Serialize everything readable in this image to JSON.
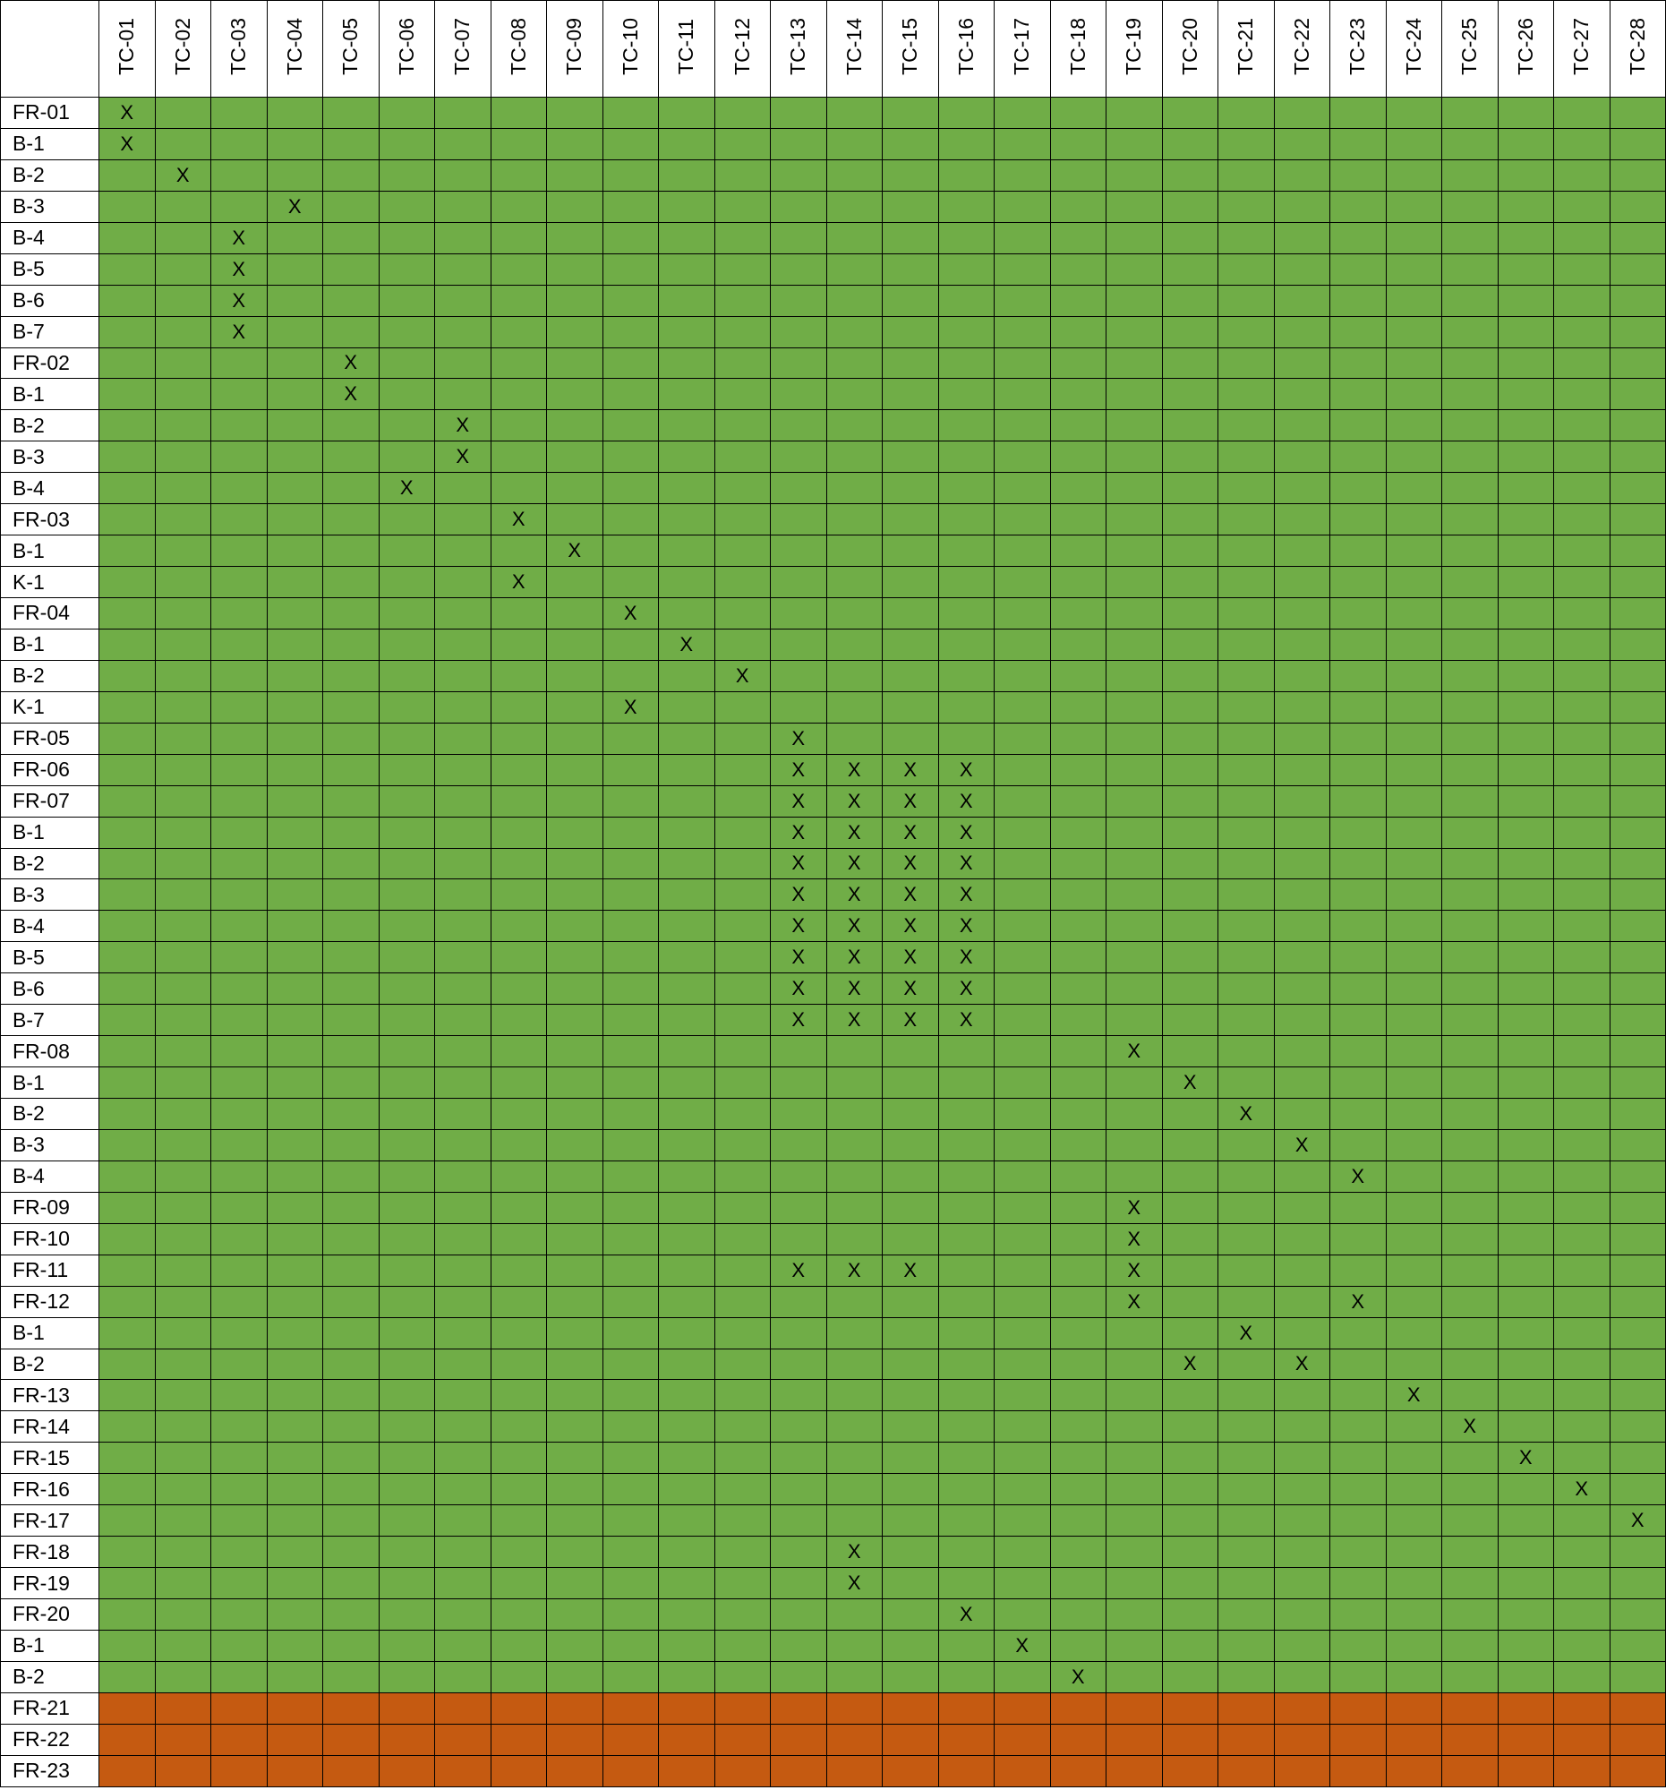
{
  "matrix": {
    "columns": [
      "TC-01",
      "TC-02",
      "TC-03",
      "TC-04",
      "TC-05",
      "TC-06",
      "TC-07",
      "TC-08",
      "TC-09",
      "TC-10",
      "TC-11",
      "TC-12",
      "TC-13",
      "TC-14",
      "TC-15",
      "TC-16",
      "TC-17",
      "TC-18",
      "TC-19",
      "TC-20",
      "TC-21",
      "TC-22",
      "TC-23",
      "TC-24",
      "TC-25",
      "TC-26",
      "TC-27",
      "TC-28"
    ],
    "mark": "X",
    "status_colors": {
      "covered": "#70ad47",
      "uncovered": "#c55a11"
    },
    "rows": [
      {
        "label": "FR-01",
        "status": "covered",
        "marks": [
          "TC-01"
        ]
      },
      {
        "label": "B-1",
        "status": "covered",
        "marks": [
          "TC-01"
        ]
      },
      {
        "label": "B-2",
        "status": "covered",
        "marks": [
          "TC-02"
        ]
      },
      {
        "label": "B-3",
        "status": "covered",
        "marks": [
          "TC-04"
        ]
      },
      {
        "label": "B-4",
        "status": "covered",
        "marks": [
          "TC-03"
        ]
      },
      {
        "label": "B-5",
        "status": "covered",
        "marks": [
          "TC-03"
        ]
      },
      {
        "label": "B-6",
        "status": "covered",
        "marks": [
          "TC-03"
        ]
      },
      {
        "label": "B-7",
        "status": "covered",
        "marks": [
          "TC-03"
        ]
      },
      {
        "label": "FR-02",
        "status": "covered",
        "marks": [
          "TC-05"
        ]
      },
      {
        "label": "B-1",
        "status": "covered",
        "marks": [
          "TC-05"
        ]
      },
      {
        "label": "B-2",
        "status": "covered",
        "marks": [
          "TC-07"
        ]
      },
      {
        "label": "B-3",
        "status": "covered",
        "marks": [
          "TC-07"
        ]
      },
      {
        "label": "B-4",
        "status": "covered",
        "marks": [
          "TC-06"
        ]
      },
      {
        "label": "FR-03",
        "status": "covered",
        "marks": [
          "TC-08"
        ]
      },
      {
        "label": "B-1",
        "status": "covered",
        "marks": [
          "TC-09"
        ]
      },
      {
        "label": "K-1",
        "status": "covered",
        "marks": [
          "TC-08"
        ]
      },
      {
        "label": "FR-04",
        "status": "covered",
        "marks": [
          "TC-10"
        ]
      },
      {
        "label": "B-1",
        "status": "covered",
        "marks": [
          "TC-11"
        ]
      },
      {
        "label": "B-2",
        "status": "covered",
        "marks": [
          "TC-12"
        ]
      },
      {
        "label": "K-1",
        "status": "covered",
        "marks": [
          "TC-10"
        ]
      },
      {
        "label": "FR-05",
        "status": "covered",
        "marks": [
          "TC-13"
        ]
      },
      {
        "label": "FR-06",
        "status": "covered",
        "marks": [
          "TC-13",
          "TC-14",
          "TC-15",
          "TC-16"
        ]
      },
      {
        "label": "FR-07",
        "status": "covered",
        "marks": [
          "TC-13",
          "TC-14",
          "TC-15",
          "TC-16"
        ]
      },
      {
        "label": "B-1",
        "status": "covered",
        "marks": [
          "TC-13",
          "TC-14",
          "TC-15",
          "TC-16"
        ]
      },
      {
        "label": "B-2",
        "status": "covered",
        "marks": [
          "TC-13",
          "TC-14",
          "TC-15",
          "TC-16"
        ]
      },
      {
        "label": "B-3",
        "status": "covered",
        "marks": [
          "TC-13",
          "TC-14",
          "TC-15",
          "TC-16"
        ]
      },
      {
        "label": "B-4",
        "status": "covered",
        "marks": [
          "TC-13",
          "TC-14",
          "TC-15",
          "TC-16"
        ]
      },
      {
        "label": "B-5",
        "status": "covered",
        "marks": [
          "TC-13",
          "TC-14",
          "TC-15",
          "TC-16"
        ]
      },
      {
        "label": "B-6",
        "status": "covered",
        "marks": [
          "TC-13",
          "TC-14",
          "TC-15",
          "TC-16"
        ]
      },
      {
        "label": "B-7",
        "status": "covered",
        "marks": [
          "TC-13",
          "TC-14",
          "TC-15",
          "TC-16"
        ]
      },
      {
        "label": "FR-08",
        "status": "covered",
        "marks": [
          "TC-19"
        ]
      },
      {
        "label": "B-1",
        "status": "covered",
        "marks": [
          "TC-20"
        ]
      },
      {
        "label": "B-2",
        "status": "covered",
        "marks": [
          "TC-21"
        ]
      },
      {
        "label": "B-3",
        "status": "covered",
        "marks": [
          "TC-22"
        ]
      },
      {
        "label": "B-4",
        "status": "covered",
        "marks": [
          "TC-23"
        ]
      },
      {
        "label": "FR-09",
        "status": "covered",
        "marks": [
          "TC-19"
        ]
      },
      {
        "label": "FR-10",
        "status": "covered",
        "marks": [
          "TC-19"
        ]
      },
      {
        "label": "FR-11",
        "status": "covered",
        "marks": [
          "TC-13",
          "TC-14",
          "TC-15",
          "TC-19"
        ]
      },
      {
        "label": "FR-12",
        "status": "covered",
        "marks": [
          "TC-19",
          "TC-23"
        ]
      },
      {
        "label": "B-1",
        "status": "covered",
        "marks": [
          "TC-21"
        ]
      },
      {
        "label": "B-2",
        "status": "covered",
        "marks": [
          "TC-20",
          "TC-22"
        ]
      },
      {
        "label": "FR-13",
        "status": "covered",
        "marks": [
          "TC-24"
        ]
      },
      {
        "label": "FR-14",
        "status": "covered",
        "marks": [
          "TC-25"
        ]
      },
      {
        "label": "FR-15",
        "status": "covered",
        "marks": [
          "TC-26"
        ]
      },
      {
        "label": "FR-16",
        "status": "covered",
        "marks": [
          "TC-27"
        ]
      },
      {
        "label": "FR-17",
        "status": "covered",
        "marks": [
          "TC-28"
        ]
      },
      {
        "label": "FR-18",
        "status": "covered",
        "marks": [
          "TC-14"
        ]
      },
      {
        "label": "FR-19",
        "status": "covered",
        "marks": [
          "TC-14"
        ]
      },
      {
        "label": "FR-20",
        "status": "covered",
        "marks": [
          "TC-16"
        ]
      },
      {
        "label": "B-1",
        "status": "covered",
        "marks": [
          "TC-17"
        ]
      },
      {
        "label": "B-2",
        "status": "covered",
        "marks": [
          "TC-18"
        ]
      },
      {
        "label": "FR-21",
        "status": "uncovered",
        "marks": []
      },
      {
        "label": "FR-22",
        "status": "uncovered",
        "marks": []
      },
      {
        "label": "FR-23",
        "status": "uncovered",
        "marks": []
      }
    ]
  }
}
